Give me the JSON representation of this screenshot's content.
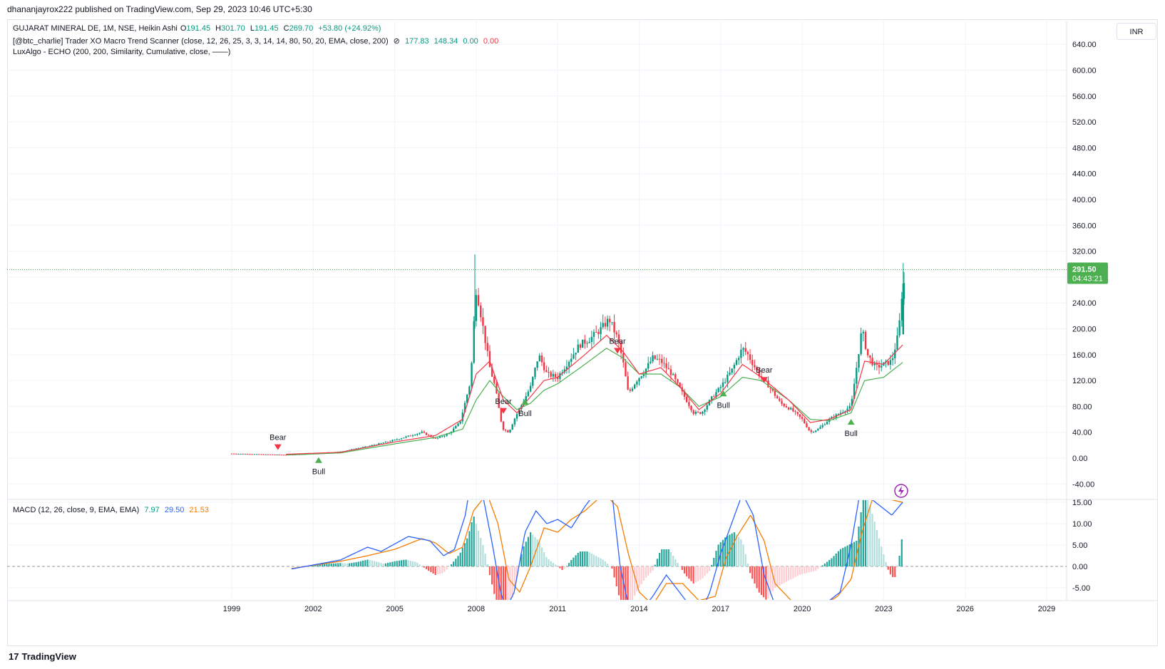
{
  "header": {
    "published_by": "dhananjayrox222 published on TradingView.com, Sep 29, 2023 10:46 UTC+5:30"
  },
  "symbol_legend": {
    "name": "GUJARAT MINERAL DE, 1M, NSE, Heikin Ashi",
    "o_label": "O",
    "o": "191.45",
    "h_label": "H",
    "h": "301.70",
    "l_label": "L",
    "l": "191.45",
    "c_label": "C",
    "c": "269.70",
    "change": "+53.80 (+24.92%)"
  },
  "indicator1": {
    "name": "[@btc_charlie] Trader XO Macro Trend Scanner (close, 12, 26, 25, 3, 3, 14, 14, 80, 50, 20, EMA, close, 200)",
    "eye": "⊘",
    "v1": "177.83",
    "v2": "148.34",
    "v3": "0.00",
    "v4": "0.00"
  },
  "indicator2": {
    "name": "LuxAlgo - ECHO (200, 200, Similarity, Cumulative, close, ——)"
  },
  "macd_legend": {
    "name": "MACD (12, 26, close, 9, EMA, EMA)",
    "macd": "7.97",
    "signal": "29.50",
    "hist": "21.53"
  },
  "currency": "INR",
  "last_price": {
    "price": "291.50",
    "countdown": "04:43:21"
  },
  "footer": {
    "brand": "TradingView",
    "logo": "17"
  },
  "colors": {
    "up": "#089981",
    "down": "#f23645",
    "fast_ema": "#f23645",
    "slow_ema": "#4caf50",
    "macd": "#2962ff",
    "signal": "#f57c00",
    "hist_pos": "#26a69a",
    "hist_pos_light": "#b2dfdb",
    "hist_neg": "#ff5252",
    "hist_neg_light": "#ffcdd2",
    "price_tag": "#4caf50"
  },
  "chart_data": {
    "type": "candlestick",
    "x_axis": {
      "tick_labels": [
        "1999",
        "2002",
        "2005",
        "2008",
        "2011",
        "2014",
        "2017",
        "2020",
        "2023",
        "2026",
        "2029"
      ]
    },
    "price_axis": {
      "tick_labels": [
        "640.00",
        "600.00",
        "560.00",
        "520.00",
        "480.00",
        "440.00",
        "400.00",
        "360.00",
        "320.00",
        "280.00",
        "240.00",
        "200.00",
        "160.00",
        "120.00",
        "80.00",
        "40.00",
        "0.00",
        "-40.00"
      ],
      "ylim": [
        -50,
        650
      ]
    },
    "macd_axis": {
      "tick_labels": [
        "15.00",
        "10.00",
        "5.00",
        "0.00",
        "-5.00"
      ],
      "ylim": [
        -7.5,
        15.5
      ]
    },
    "price_path": [
      [
        1999.0,
        7
      ],
      [
        2001.0,
        5
      ],
      [
        2002.2,
        7
      ],
      [
        2003.0,
        10
      ],
      [
        2004.0,
        18
      ],
      [
        2005.0,
        28
      ],
      [
        2006.0,
        40
      ],
      [
        2006.5,
        30
      ],
      [
        2007.0,
        38
      ],
      [
        2007.4,
        55
      ],
      [
        2007.8,
        120
      ],
      [
        2007.9,
        200
      ],
      [
        2008.0,
        260
      ],
      [
        2008.1,
        240
      ],
      [
        2008.3,
        190
      ],
      [
        2008.5,
        140
      ],
      [
        2008.7,
        110
      ],
      [
        2008.9,
        60
      ],
      [
        2009.0,
        45
      ],
      [
        2009.2,
        40
      ],
      [
        2009.4,
        60
      ],
      [
        2009.7,
        85
      ],
      [
        2010.0,
        110
      ],
      [
        2010.3,
        160
      ],
      [
        2010.6,
        130
      ],
      [
        2011.0,
        125
      ],
      [
        2011.4,
        150
      ],
      [
        2011.8,
        175
      ],
      [
        2012.2,
        185
      ],
      [
        2012.6,
        200
      ],
      [
        2012.9,
        215
      ],
      [
        2013.2,
        185
      ],
      [
        2013.4,
        150
      ],
      [
        2013.6,
        100
      ],
      [
        2013.9,
        120
      ],
      [
        2014.2,
        135
      ],
      [
        2014.5,
        155
      ],
      [
        2014.8,
        150
      ],
      [
        2015.2,
        130
      ],
      [
        2015.6,
        100
      ],
      [
        2016.0,
        70
      ],
      [
        2016.3,
        70
      ],
      [
        2016.7,
        95
      ],
      [
        2017.0,
        110
      ],
      [
        2017.4,
        135
      ],
      [
        2017.8,
        170
      ],
      [
        2018.0,
        160
      ],
      [
        2018.4,
        130
      ],
      [
        2018.8,
        110
      ],
      [
        2019.2,
        85
      ],
      [
        2019.6,
        75
      ],
      [
        2020.0,
        60
      ],
      [
        2020.3,
        40
      ],
      [
        2020.6,
        45
      ],
      [
        2021.0,
        60
      ],
      [
        2021.4,
        70
      ],
      [
        2021.8,
        80
      ],
      [
        2022.0,
        140
      ],
      [
        2022.2,
        200
      ],
      [
        2022.4,
        160
      ],
      [
        2022.7,
        140
      ],
      [
        2023.0,
        145
      ],
      [
        2023.3,
        150
      ],
      [
        2023.5,
        185
      ],
      [
        2023.6,
        215
      ],
      [
        2023.7,
        270
      ]
    ],
    "ema_fast_path": [
      [
        2001.0,
        6
      ],
      [
        2003.0,
        9
      ],
      [
        2005.0,
        25
      ],
      [
        2006.5,
        35
      ],
      [
        2007.5,
        60
      ],
      [
        2008.0,
        130
      ],
      [
        2008.5,
        150
      ],
      [
        2009.0,
        90
      ],
      [
        2009.5,
        70
      ],
      [
        2010.0,
        95
      ],
      [
        2010.5,
        120
      ],
      [
        2011.0,
        125
      ],
      [
        2012.0,
        160
      ],
      [
        2012.8,
        190
      ],
      [
        2013.4,
        165
      ],
      [
        2014.0,
        130
      ],
      [
        2014.8,
        140
      ],
      [
        2015.5,
        110
      ],
      [
        2016.2,
        75
      ],
      [
        2017.0,
        100
      ],
      [
        2017.8,
        145
      ],
      [
        2018.5,
        125
      ],
      [
        2019.5,
        90
      ],
      [
        2020.3,
        55
      ],
      [
        2021.0,
        60
      ],
      [
        2021.8,
        75
      ],
      [
        2022.3,
        150
      ],
      [
        2023.0,
        145
      ],
      [
        2023.7,
        175
      ]
    ],
    "ema_slow_path": [
      [
        2001.0,
        5
      ],
      [
        2003.0,
        8
      ],
      [
        2005.0,
        22
      ],
      [
        2006.5,
        32
      ],
      [
        2007.5,
        45
      ],
      [
        2008.0,
        90
      ],
      [
        2008.5,
        120
      ],
      [
        2009.0,
        95
      ],
      [
        2009.5,
        75
      ],
      [
        2010.0,
        85
      ],
      [
        2010.5,
        105
      ],
      [
        2011.0,
        115
      ],
      [
        2012.0,
        145
      ],
      [
        2012.8,
        170
      ],
      [
        2013.4,
        155
      ],
      [
        2014.0,
        130
      ],
      [
        2014.8,
        130
      ],
      [
        2015.5,
        110
      ],
      [
        2016.2,
        80
      ],
      [
        2017.0,
        95
      ],
      [
        2017.8,
        125
      ],
      [
        2018.5,
        120
      ],
      [
        2019.5,
        90
      ],
      [
        2020.3,
        60
      ],
      [
        2021.0,
        58
      ],
      [
        2021.8,
        70
      ],
      [
        2022.3,
        120
      ],
      [
        2023.0,
        125
      ],
      [
        2023.7,
        148
      ]
    ],
    "signals": [
      {
        "label": "Bear",
        "x": 2000.7,
        "price": 17,
        "dir": "down"
      },
      {
        "label": "Bull",
        "x": 2002.2,
        "price": -3,
        "dir": "up"
      },
      {
        "label": "Bear",
        "x": 2009.0,
        "price": 73,
        "dir": "down"
      },
      {
        "label": "Bull",
        "x": 2009.8,
        "price": 87,
        "dir": "up"
      },
      {
        "label": "Bear",
        "x": 2013.2,
        "price": 166,
        "dir": "down"
      },
      {
        "label": "Bull",
        "x": 2017.1,
        "price": 100,
        "dir": "up"
      },
      {
        "label": "Bear",
        "x": 2018.6,
        "price": 121,
        "dir": "down"
      },
      {
        "label": "Bull",
        "x": 2021.8,
        "price": 56,
        "dir": "up"
      }
    ],
    "macd_line": [
      [
        2001.2,
        -0.6
      ],
      [
        2003.0,
        1.5
      ],
      [
        2004.0,
        4.5
      ],
      [
        2004.5,
        3.5
      ],
      [
        2005.5,
        7
      ],
      [
        2006.3,
        6
      ],
      [
        2006.8,
        2.5
      ],
      [
        2007.2,
        4
      ],
      [
        2007.6,
        12
      ],
      [
        2007.8,
        20
      ],
      [
        2008.2,
        18
      ],
      [
        2008.6,
        5
      ],
      [
        2008.9,
        -6
      ],
      [
        2009.1,
        -10
      ],
      [
        2009.4,
        -6
      ],
      [
        2009.8,
        8
      ],
      [
        2010.2,
        13
      ],
      [
        2010.6,
        10
      ],
      [
        2011.0,
        11
      ],
      [
        2011.5,
        9
      ],
      [
        2012.0,
        14
      ],
      [
        2012.6,
        19
      ],
      [
        2013.0,
        17
      ],
      [
        2013.3,
        0
      ],
      [
        2013.6,
        -9
      ],
      [
        2014.0,
        -11
      ],
      [
        2014.5,
        -7
      ],
      [
        2015.0,
        -2
      ],
      [
        2015.6,
        -7
      ],
      [
        2016.2,
        -12
      ],
      [
        2016.6,
        -6
      ],
      [
        2017.0,
        3
      ],
      [
        2017.4,
        10
      ],
      [
        2017.8,
        17
      ],
      [
        2018.2,
        12
      ],
      [
        2018.6,
        -2
      ],
      [
        2019.0,
        -9
      ],
      [
        2019.5,
        -12
      ],
      [
        2020.2,
        -12
      ],
      [
        2020.8,
        -9
      ],
      [
        2021.4,
        -6
      ],
      [
        2021.8,
        5
      ],
      [
        2022.2,
        20
      ],
      [
        2022.5,
        16
      ],
      [
        2022.9,
        14
      ],
      [
        2023.3,
        12
      ],
      [
        2023.7,
        15
      ]
    ],
    "signal_line": [
      [
        2001.2,
        -0.5
      ],
      [
        2003.0,
        1.2
      ],
      [
        2004.0,
        2.5
      ],
      [
        2005.0,
        4
      ],
      [
        2006.0,
        6.5
      ],
      [
        2006.5,
        5.5
      ],
      [
        2007.0,
        3
      ],
      [
        2007.5,
        4.5
      ],
      [
        2007.9,
        13
      ],
      [
        2008.4,
        17
      ],
      [
        2008.8,
        10
      ],
      [
        2009.2,
        -3
      ],
      [
        2009.6,
        -6
      ],
      [
        2010.0,
        0
      ],
      [
        2010.5,
        9
      ],
      [
        2011.0,
        8
      ],
      [
        2011.5,
        11
      ],
      [
        2012.0,
        13
      ],
      [
        2012.7,
        17
      ],
      [
        2013.2,
        14
      ],
      [
        2013.6,
        3
      ],
      [
        2014.0,
        -6
      ],
      [
        2014.5,
        -9
      ],
      [
        2015.0,
        -4
      ],
      [
        2015.6,
        -4
      ],
      [
        2016.2,
        -8
      ],
      [
        2016.8,
        -7
      ],
      [
        2017.2,
        2
      ],
      [
        2017.6,
        7
      ],
      [
        2018.1,
        12
      ],
      [
        2018.6,
        6
      ],
      [
        2019.0,
        -4
      ],
      [
        2019.6,
        -8
      ],
      [
        2020.2,
        -11
      ],
      [
        2020.8,
        -9
      ],
      [
        2021.3,
        -7
      ],
      [
        2021.8,
        -3
      ],
      [
        2022.2,
        8
      ],
      [
        2022.6,
        16
      ],
      [
        2023.0,
        16
      ],
      [
        2023.7,
        15
      ]
    ],
    "histogram": [
      [
        2001.5,
        -0.3
      ],
      [
        2002.0,
        0.3
      ],
      [
        2002.5,
        0.6
      ],
      [
        2003.0,
        0.8
      ],
      [
        2003.3,
        0.7
      ],
      [
        2003.6,
        1.0
      ],
      [
        2004.0,
        1.6
      ],
      [
        2004.3,
        1.2
      ],
      [
        2004.6,
        0.6
      ],
      [
        2005.0,
        1.2
      ],
      [
        2005.4,
        1.6
      ],
      [
        2005.8,
        1.0
      ],
      [
        2006.2,
        -0.8
      ],
      [
        2006.5,
        -2
      ],
      [
        2006.8,
        -1.5
      ],
      [
        2007.1,
        0.6
      ],
      [
        2007.4,
        3
      ],
      [
        2007.7,
        7
      ],
      [
        2007.9,
        12
      ],
      [
        2008.1,
        8
      ],
      [
        2008.3,
        4
      ],
      [
        2008.5,
        -2
      ],
      [
        2008.8,
        -10
      ],
      [
        2009.1,
        -12
      ],
      [
        2009.4,
        -6
      ],
      [
        2009.7,
        4
      ],
      [
        2010.0,
        8
      ],
      [
        2010.3,
        6
      ],
      [
        2010.6,
        2
      ],
      [
        2010.9,
        0.5
      ],
      [
        2011.2,
        -1
      ],
      [
        2011.5,
        1.5
      ],
      [
        2011.8,
        3.5
      ],
      [
        2012.1,
        3.5
      ],
      [
        2012.4,
        2.5
      ],
      [
        2012.7,
        1.5
      ],
      [
        2013.0,
        -0.5
      ],
      [
        2013.3,
        -8
      ],
      [
        2013.6,
        -10
      ],
      [
        2013.9,
        -6
      ],
      [
        2014.2,
        -3
      ],
      [
        2014.5,
        -1
      ],
      [
        2014.8,
        4
      ],
      [
        2015.1,
        4
      ],
      [
        2015.4,
        1
      ],
      [
        2015.7,
        -2
      ],
      [
        2016.0,
        -4
      ],
      [
        2016.3,
        -3
      ],
      [
        2016.6,
        -1
      ],
      [
        2016.9,
        5
      ],
      [
        2017.2,
        7
      ],
      [
        2017.5,
        8
      ],
      [
        2017.8,
        6
      ],
      [
        2018.1,
        -2
      ],
      [
        2018.4,
        -6
      ],
      [
        2018.7,
        -8
      ],
      [
        2019.0,
        -5
      ],
      [
        2019.3,
        -4
      ],
      [
        2019.6,
        -3
      ],
      [
        2019.9,
        -2
      ],
      [
        2020.2,
        -1.5
      ],
      [
        2020.5,
        -1
      ],
      [
        2020.8,
        0.5
      ],
      [
        2021.1,
        2
      ],
      [
        2021.4,
        4
      ],
      [
        2021.7,
        5
      ],
      [
        2022.0,
        6
      ],
      [
        2022.3,
        18
      ],
      [
        2022.6,
        12
      ],
      [
        2022.9,
        5
      ],
      [
        2023.2,
        -1.5
      ],
      [
        2023.4,
        -3
      ],
      [
        2023.6,
        3
      ],
      [
        2023.7,
        8
      ]
    ]
  }
}
